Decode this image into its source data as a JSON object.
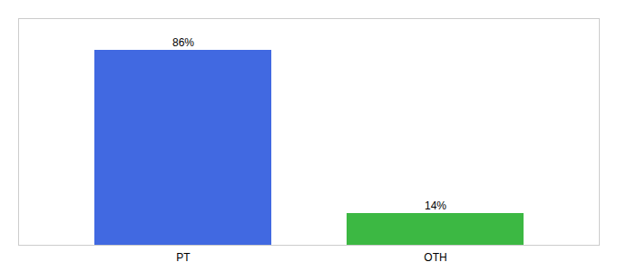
{
  "chart_data": {
    "type": "bar",
    "categories": [
      "PT",
      "OTH"
    ],
    "values": [
      86,
      14
    ],
    "value_labels": [
      "86%",
      "14%"
    ],
    "colors": [
      "#4169E1",
      "#3CB843"
    ],
    "ylim": [
      0,
      100
    ],
    "data_labels": true,
    "tick_labels": "x"
  }
}
